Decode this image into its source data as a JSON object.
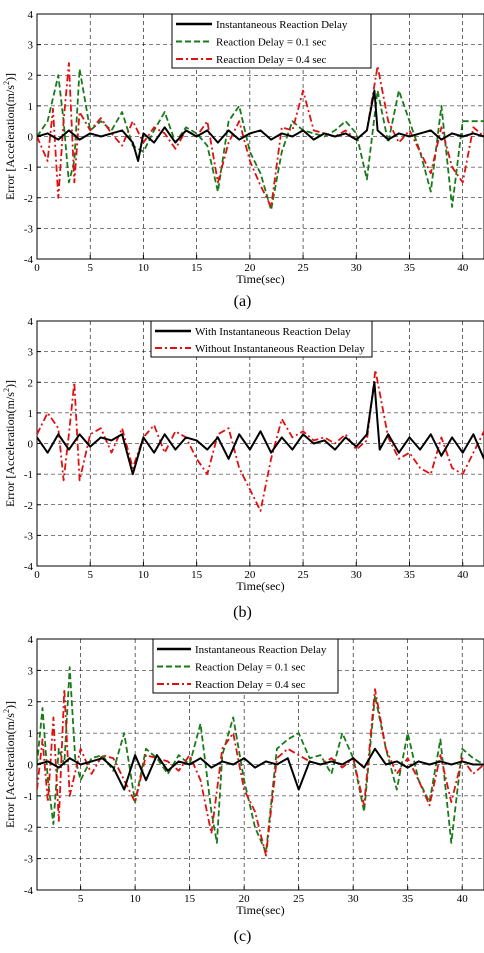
{
  "chart_data": [
    {
      "type": "line",
      "caption": "(a)",
      "xlabel": "Time(sec)",
      "ylabel": "Error [Acceleration(m/s^2)]",
      "xlim": [
        0,
        42
      ],
      "ylim": [
        -4,
        4
      ],
      "xticks": [
        0,
        5,
        10,
        15,
        20,
        25,
        30,
        35,
        40
      ],
      "yticks": [
        4,
        3,
        2,
        1,
        0,
        -1,
        -2,
        -3,
        -4
      ],
      "grid": true,
      "legend_position": "top-center",
      "series": [
        {
          "name": "Instantaneous Reaction Delay",
          "color": "#000000",
          "style": "solid",
          "x": [
            0,
            1,
            2,
            3,
            4,
            5,
            6,
            7,
            8,
            9,
            9.5,
            10,
            11,
            12,
            13,
            14,
            15,
            16,
            17,
            18,
            19,
            20,
            21,
            22,
            23,
            24,
            25,
            26,
            27,
            28,
            29,
            30,
            31,
            31.7,
            32,
            33,
            34,
            35,
            36,
            37,
            38,
            39,
            40,
            41,
            42
          ],
          "y": [
            0,
            0.1,
            -0.1,
            0.2,
            -0.1,
            0.1,
            0,
            0.1,
            0.2,
            -0.2,
            -0.8,
            0.1,
            -0.2,
            0.3,
            -0.2,
            0.2,
            0,
            0.2,
            -0.2,
            0.2,
            -0.1,
            0.1,
            0.2,
            -0.1,
            0.1,
            0,
            0.2,
            -0.1,
            0.1,
            0,
            0.1,
            -0.1,
            0.2,
            1.5,
            0.2,
            -0.1,
            0.1,
            0,
            0.1,
            0.2,
            -0.1,
            0.1,
            0,
            0.1,
            0
          ]
        },
        {
          "name": "Reaction Delay = 0.1 sec",
          "color": "#1a7a1a",
          "style": "dashed",
          "x": [
            0,
            1,
            2,
            2.5,
            3,
            3.5,
            4,
            5,
            6,
            7,
            8,
            9,
            10,
            11,
            12,
            13,
            14,
            15,
            16,
            17,
            18,
            19,
            20,
            21,
            22,
            23,
            24,
            25,
            26,
            27,
            28,
            29,
            30,
            31,
            32,
            33,
            34,
            35,
            36,
            37,
            38,
            39,
            40,
            41,
            42
          ],
          "y": [
            0,
            0.5,
            2.0,
            0.5,
            -1.5,
            -0.8,
            2.2,
            0.2,
            0.5,
            0.2,
            0.8,
            -0.3,
            -0.5,
            0.2,
            0.8,
            -0.2,
            0.3,
            0.1,
            -0.3,
            -1.8,
            0.5,
            1.0,
            -0.5,
            -1.2,
            -2.4,
            -0.5,
            0.5,
            0.2,
            0.1,
            0,
            0.2,
            0.5,
            0.1,
            -1.4,
            1.5,
            -0.2,
            1.5,
            0.5,
            -0.5,
            -1.8,
            1.0,
            -2.3,
            0.5,
            0.5,
            0.5
          ]
        },
        {
          "name": "Reaction Delay = 0.4 sec",
          "color": "#e01010",
          "style": "dashdot",
          "x": [
            0,
            1,
            1.5,
            2,
            2.5,
            3,
            3.5,
            4,
            5,
            6,
            7,
            8,
            9,
            10,
            11,
            12,
            13,
            14,
            15,
            16,
            17,
            18,
            19,
            20,
            21,
            22,
            23,
            24,
            25,
            26,
            27,
            28,
            29,
            30,
            31,
            32,
            33,
            34,
            35,
            36,
            37,
            38,
            39,
            40,
            41,
            42
          ],
          "y": [
            0,
            -0.8,
            0.9,
            -2.0,
            0.5,
            2.4,
            -1.5,
            0.8,
            0.2,
            0.6,
            0.1,
            -0.3,
            0.5,
            -0.2,
            0.3,
            0.1,
            -0.4,
            0.2,
            0,
            0.5,
            -1.5,
            -0.2,
            0.5,
            -0.8,
            -1.6,
            -2.3,
            0.3,
            0.2,
            1.5,
            0.2,
            0.1,
            0,
            0.2,
            -0.1,
            0.2,
            2.3,
            0.5,
            -0.2,
            0.2,
            -0.5,
            -1.2,
            0.3,
            -1.0,
            -1.5,
            0.3,
            0
          ]
        }
      ]
    },
    {
      "type": "line",
      "caption": "(b)",
      "xlabel": "Time(sec)",
      "ylabel": "Error [Acceleration(m/s^2)]",
      "xlim": [
        0,
        42
      ],
      "ylim": [
        -4,
        4
      ],
      "xticks": [
        0,
        5,
        10,
        15,
        20,
        25,
        30,
        35,
        40
      ],
      "yticks": [
        4,
        3,
        2,
        1,
        0,
        -1,
        -2,
        -3,
        -4
      ],
      "grid": true,
      "legend_position": "top-center",
      "series": [
        {
          "name": "With Instantaneous Reaction Delay",
          "color": "#000000",
          "style": "solid",
          "x": [
            0,
            1,
            2,
            3,
            4,
            5,
            6,
            7,
            8,
            9,
            10,
            11,
            12,
            13,
            14,
            15,
            16,
            17,
            18,
            19,
            20,
            21,
            22,
            23,
            24,
            25,
            26,
            27,
            28,
            29,
            30,
            31,
            31.7,
            32.2,
            33,
            34,
            35,
            36,
            37,
            38,
            39,
            40,
            41,
            42
          ],
          "y": [
            0.2,
            -0.3,
            0.3,
            -0.2,
            0.3,
            -0.1,
            0.2,
            0.1,
            0.3,
            -1.0,
            0.2,
            -0.3,
            0.3,
            -0.2,
            0.2,
            0.1,
            -0.2,
            0.2,
            -0.5,
            0.3,
            -0.2,
            0.4,
            -0.3,
            0.2,
            -0.2,
            0.3,
            0,
            0.1,
            -0.2,
            0.2,
            -0.1,
            0.3,
            2.0,
            -0.2,
            0.3,
            -0.3,
            0.2,
            -0.2,
            0.3,
            -0.4,
            0.2,
            -0.3,
            0.3,
            -0.5
          ]
        },
        {
          "name": "Without Instantaneous Reaction Delay",
          "color": "#e01010",
          "style": "dashdot",
          "x": [
            0,
            1,
            2,
            2.5,
            3,
            3.5,
            4,
            5,
            6,
            7,
            8,
            9,
            10,
            11,
            12,
            13,
            14,
            15,
            16,
            17,
            18,
            19,
            20,
            21,
            22,
            23,
            24,
            25,
            26,
            27,
            28,
            29,
            30,
            31,
            31.8,
            33,
            34,
            35,
            36,
            37,
            38,
            39,
            40,
            41,
            42
          ],
          "y": [
            0.3,
            1.0,
            0.5,
            -1.2,
            0.3,
            2.0,
            -1.2,
            0.3,
            0.5,
            -0.3,
            0.5,
            -0.8,
            0.2,
            0.6,
            -0.3,
            0.4,
            0.2,
            -0.5,
            -1.0,
            0.3,
            0.5,
            -0.8,
            -1.5,
            -2.2,
            -0.5,
            0.8,
            0.2,
            0.4,
            0.1,
            0.2,
            0,
            0.3,
            -0.2,
            0.1,
            2.4,
            0.2,
            -0.5,
            -0.3,
            -0.8,
            -1.0,
            0.2,
            -0.8,
            -1.0,
            -0.3,
            0.4
          ]
        }
      ]
    },
    {
      "type": "line",
      "caption": "(c)",
      "xlabel": "Time(sec)",
      "ylabel": "Error [Acceleration(m/s^2)]",
      "xlim": [
        1,
        42
      ],
      "ylim": [
        -4,
        4
      ],
      "xticks": [
        5,
        10,
        15,
        20,
        25,
        30,
        35,
        40
      ],
      "yticks": [
        4,
        3,
        2,
        1,
        0,
        -1,
        -2,
        -3,
        -4
      ],
      "grid": true,
      "legend_position": "top-center",
      "series": [
        {
          "name": "Instantaneous Reaction Delay",
          "color": "#000000",
          "style": "solid",
          "x": [
            1,
            2,
            3,
            4,
            5,
            6,
            7,
            8,
            9,
            10,
            11,
            12,
            13,
            14,
            15,
            16,
            17,
            18,
            19,
            20,
            21,
            22,
            23,
            24,
            25,
            26,
            27,
            28,
            29,
            30,
            31,
            32,
            33,
            34,
            35,
            36,
            37,
            38,
            39,
            40,
            41,
            42
          ],
          "y": [
            0,
            0.1,
            -0.1,
            0.2,
            0,
            0.1,
            0.2,
            -0.1,
            -0.8,
            0.3,
            -0.5,
            0.3,
            -0.2,
            0.1,
            0,
            0.2,
            -0.1,
            0.1,
            0,
            0.2,
            -0.1,
            0.1,
            0,
            0.2,
            -0.8,
            0.1,
            0,
            0.1,
            0,
            0.2,
            -0.1,
            0.5,
            0,
            0.1,
            -0.1,
            0.1,
            0,
            0.1,
            0,
            0.1,
            0,
            0
          ]
        },
        {
          "name": "Reaction Delay = 0.1 sec",
          "color": "#1a7a1a",
          "style": "dashed",
          "x": [
            1,
            1.5,
            2,
            2.5,
            3,
            3.5,
            4,
            4.5,
            5,
            6,
            7,
            8,
            9,
            10,
            11,
            12,
            13,
            14,
            15,
            16,
            17,
            17.5,
            18,
            19,
            20,
            21,
            22,
            23,
            24,
            25,
            26,
            27,
            28,
            29,
            30,
            31,
            32,
            33,
            34,
            35,
            36,
            37,
            38,
            39,
            40,
            41,
            42
          ],
          "y": [
            0,
            1.8,
            -0.5,
            -1.9,
            0.5,
            0,
            3.1,
            0.2,
            -0.5,
            0.2,
            0.3,
            -0.2,
            1.0,
            -1.2,
            0.5,
            0.2,
            -0.3,
            0.3,
            0,
            1.3,
            -1.5,
            -2.5,
            0.3,
            1.5,
            -0.5,
            -2.0,
            -2.8,
            0.5,
            0.8,
            1.0,
            0.2,
            0.3,
            -0.3,
            1.0,
            0.2,
            -1.5,
            2.2,
            0.5,
            -0.8,
            1.0,
            -0.5,
            -1.2,
            0.8,
            -2.5,
            0.5,
            0.2,
            0
          ]
        },
        {
          "name": "Reaction Delay = 0.4 sec",
          "color": "#e01010",
          "style": "dashdot",
          "x": [
            1,
            1.5,
            2,
            2.5,
            3,
            3.5,
            4,
            5,
            6,
            7,
            8,
            9,
            10,
            11,
            12,
            13,
            14,
            15,
            16,
            17,
            18,
            19,
            20,
            21,
            22,
            23,
            24,
            25,
            26,
            27,
            28,
            29,
            30,
            31,
            32,
            33,
            34,
            35,
            36,
            37,
            38,
            39,
            40,
            41,
            42
          ],
          "y": [
            -0.8,
            0.8,
            -1.2,
            1.5,
            -1.8,
            2.4,
            -1.0,
            0.5,
            -0.3,
            0.3,
            0.2,
            -0.5,
            -1.2,
            0.3,
            0.2,
            0.1,
            -0.2,
            0.3,
            -0.5,
            -2.2,
            0.5,
            1.0,
            -0.8,
            -1.5,
            -2.9,
            0.2,
            0.5,
            0.3,
            0.1,
            0,
            0.2,
            -0.1,
            0.2,
            -1.3,
            2.4,
            0.5,
            -0.3,
            0.2,
            -0.5,
            -1.3,
            0.3,
            -1.2,
            0.2,
            -0.3,
            0
          ]
        }
      ]
    }
  ]
}
